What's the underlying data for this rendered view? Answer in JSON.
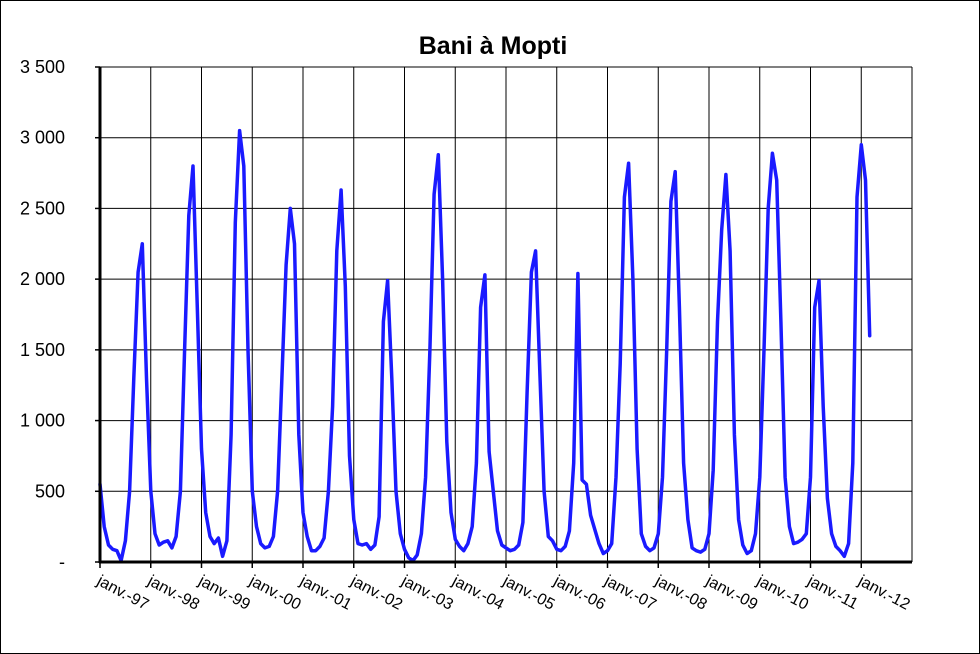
{
  "chart_data": {
    "type": "line",
    "title": "Bani à Mopti",
    "xlabel": "",
    "ylabel": "",
    "ylim": [
      0,
      3500
    ],
    "ytick_values": [
      0,
      500,
      1000,
      1500,
      2000,
      2500,
      3000,
      3500
    ],
    "ytick_labels": [
      "-",
      "500",
      "1 000",
      "1 500",
      "2 000",
      "2 500",
      "3 000",
      "3 500"
    ],
    "xtick_labels": [
      "janv.-97",
      "janv.-98",
      "janv.-99",
      "janv.-00",
      "janv.-01",
      "janv.-02",
      "janv.-03",
      "janv.-04",
      "janv.-05",
      "janv.-06",
      "janv.-07",
      "janv.-08",
      "janv.-09",
      "janv.-10",
      "janv.-11",
      "janv.-12"
    ],
    "grid": true,
    "legend": "none",
    "series": [
      {
        "color": "#1a1aff",
        "x_start": "janv.-97",
        "step": "month",
        "values": [
          550,
          250,
          120,
          90,
          80,
          10,
          150,
          500,
          1300,
          2050,
          2250,
          1300,
          500,
          200,
          120,
          140,
          150,
          100,
          180,
          500,
          1500,
          2450,
          2800,
          1800,
          800,
          350,
          180,
          130,
          170,
          40,
          150,
          900,
          2400,
          3050,
          2800,
          1500,
          500,
          250,
          130,
          100,
          110,
          180,
          500,
          1300,
          2100,
          2500,
          2250,
          900,
          350,
          180,
          80,
          80,
          110,
          170,
          500,
          1100,
          2200,
          2630,
          1950,
          750,
          300,
          130,
          120,
          130,
          90,
          120,
          320,
          1700,
          1990,
          1300,
          500,
          200,
          90,
          30,
          10,
          50,
          200,
          600,
          1500,
          2600,
          2880,
          2000,
          850,
          350,
          160,
          110,
          80,
          130,
          250,
          700,
          1800,
          2030,
          780,
          500,
          220,
          120,
          100,
          80,
          90,
          120,
          280,
          1200,
          2050,
          2200,
          1350,
          500,
          180,
          150,
          90,
          80,
          110,
          220,
          700,
          2040,
          580,
          550,
          330,
          230,
          130,
          60,
          80,
          130,
          600,
          1400,
          2580,
          2820,
          2000,
          800,
          200,
          110,
          80,
          100,
          200,
          600,
          1500,
          2550,
          2760,
          1800,
          700,
          300,
          100,
          80,
          70,
          90,
          200,
          650,
          1700,
          2350,
          2740,
          2200,
          900,
          300,
          120,
          60,
          80,
          200,
          600,
          1500,
          2500,
          2890,
          2700,
          1700,
          600,
          250,
          130,
          140,
          160,
          200,
          600,
          1800,
          1990,
          1100,
          450,
          200,
          110,
          80,
          40,
          130,
          700,
          2580,
          2950,
          2700,
          1600
        ]
      }
    ]
  }
}
